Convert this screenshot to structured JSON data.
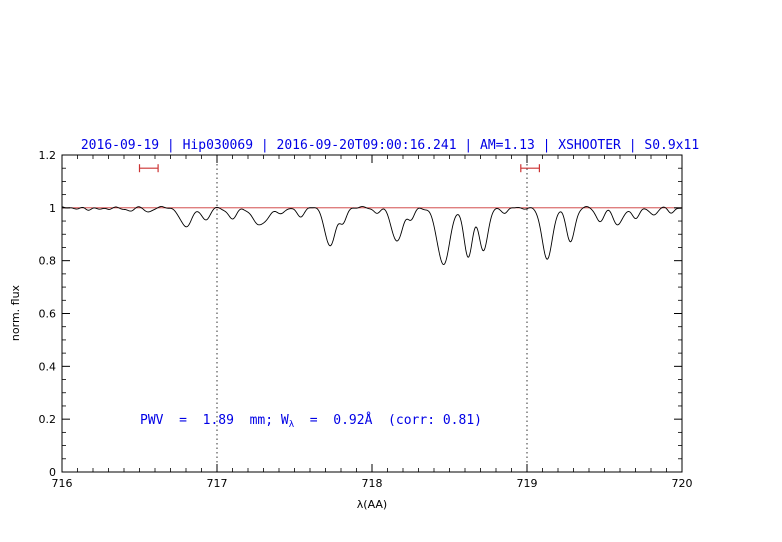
{
  "colors": {
    "blue": "#0000e6",
    "red": "#cc3333",
    "black": "#000000"
  },
  "chart_data": {
    "type": "line",
    "title": "2016-09-19 | Hip030069 | 2016-09-20T09:00:16.241 | AM=1.13 | XSHOOTER | S0.9x11",
    "xlabel": "λ(AA)",
    "ylabel": "norm. flux",
    "xlim": [
      716,
      720
    ],
    "ylim": [
      0,
      1.2
    ],
    "grid": false,
    "x_ticks": {
      "values": [
        716,
        717,
        718,
        719,
        720
      ],
      "labels": [
        "716",
        "717",
        "718",
        "719",
        "720"
      ],
      "minor_step": 0.1
    },
    "y_ticks": {
      "values": [
        0,
        0.2,
        0.4,
        0.6,
        0.8,
        1,
        1.2
      ],
      "labels": [
        "0",
        "0.2",
        "0.4",
        "0.6",
        "0.8",
        "1",
        "1.2"
      ],
      "minor_step": 0.05
    },
    "continuum_level": 1.0,
    "vlines": [
      717,
      719
    ],
    "range_markers": [
      {
        "x_start": 716.5,
        "x_end": 716.62,
        "y": 1.15
      },
      {
        "x_start": 718.96,
        "x_end": 719.08,
        "y": 1.15
      }
    ],
    "annotation": {
      "part1": "PWV  =  1.89  mm; W",
      "sub": "λ",
      "part2": "  =  0.92Å  (corr: 0.81)"
    },
    "absorption_lines": [
      {
        "center": 716.17,
        "depth": 0.01,
        "sigma": 0.02
      },
      {
        "center": 716.3,
        "depth": 0.007,
        "sigma": 0.02
      },
      {
        "center": 716.44,
        "depth": 0.012,
        "sigma": 0.022
      },
      {
        "center": 716.56,
        "depth": 0.014,
        "sigma": 0.022
      },
      {
        "center": 716.8,
        "depth": 0.075,
        "sigma": 0.035
      },
      {
        "center": 716.93,
        "depth": 0.048,
        "sigma": 0.025
      },
      {
        "center": 717.1,
        "depth": 0.042,
        "sigma": 0.028
      },
      {
        "center": 717.28,
        "depth": 0.068,
        "sigma": 0.045
      },
      {
        "center": 717.42,
        "depth": 0.022,
        "sigma": 0.025
      },
      {
        "center": 717.54,
        "depth": 0.03,
        "sigma": 0.025
      },
      {
        "center": 717.73,
        "depth": 0.145,
        "sigma": 0.033
      },
      {
        "center": 717.81,
        "depth": 0.055,
        "sigma": 0.022
      },
      {
        "center": 718.03,
        "depth": 0.018,
        "sigma": 0.02
      },
      {
        "center": 718.16,
        "depth": 0.125,
        "sigma": 0.035
      },
      {
        "center": 718.25,
        "depth": 0.045,
        "sigma": 0.022
      },
      {
        "center": 718.46,
        "depth": 0.215,
        "sigma": 0.04
      },
      {
        "center": 718.62,
        "depth": 0.185,
        "sigma": 0.028
      },
      {
        "center": 718.72,
        "depth": 0.165,
        "sigma": 0.028
      },
      {
        "center": 718.86,
        "depth": 0.02,
        "sigma": 0.02
      },
      {
        "center": 719.13,
        "depth": 0.19,
        "sigma": 0.034
      },
      {
        "center": 719.28,
        "depth": 0.125,
        "sigma": 0.028
      },
      {
        "center": 719.47,
        "depth": 0.05,
        "sigma": 0.025
      },
      {
        "center": 719.585,
        "depth": 0.065,
        "sigma": 0.03
      },
      {
        "center": 719.7,
        "depth": 0.042,
        "sigma": 0.025
      },
      {
        "center": 719.82,
        "depth": 0.028,
        "sigma": 0.022
      },
      {
        "center": 719.93,
        "depth": 0.016,
        "sigma": 0.02
      }
    ]
  }
}
